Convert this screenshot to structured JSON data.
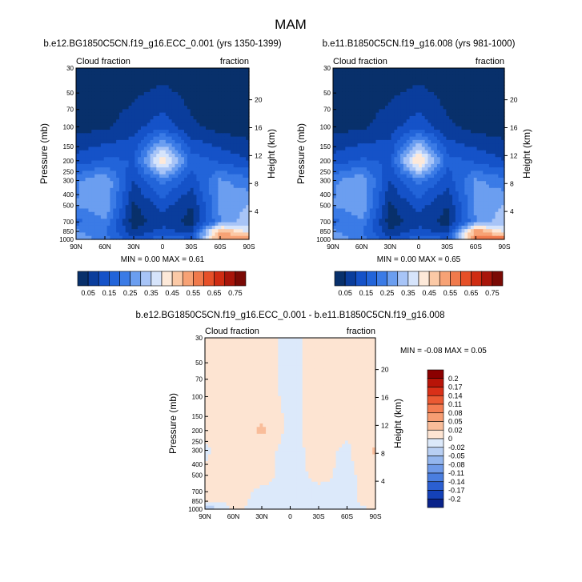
{
  "page_title": "MAM",
  "chart_data": [
    {
      "type": "heatmap",
      "title": "b.e12.BG1850C5CN.f19_g16.ECC_0.001 (yrs 1350-1399)",
      "left_label": "Cloud fraction",
      "right_label": "fraction",
      "ylabel": "Pressure (mb)",
      "ylabel_right": "Height (km)",
      "x_ticks": [
        "90N",
        "60N",
        "30N",
        "0",
        "30S",
        "60S",
        "90S"
      ],
      "y_ticks": [
        "30",
        "50",
        "70",
        "100",
        "150",
        "200",
        "250",
        "300",
        "400",
        "500",
        "700",
        "850",
        "1000"
      ],
      "height_ticks": [
        "20",
        "16",
        "12",
        "8",
        "4"
      ],
      "stats": {
        "min_label": "MIN =",
        "min": "0.00",
        "max_label": "MAX =",
        "max": "0.61"
      },
      "colorbar": {
        "labels": [
          "0.05",
          "0.15",
          "0.25",
          "0.35",
          "0.45",
          "0.55",
          "0.65",
          "0.75"
        ],
        "colors": [
          "#08306b",
          "#0a3d9c",
          "#1552c8",
          "#2264d9",
          "#3b7be6",
          "#6b9ef0",
          "#a7c4f7",
          "#d6e4fb",
          "#fde9d9",
          "#fbc9a6",
          "#f7a275",
          "#f07a4c",
          "#e65028",
          "#cf2c12",
          "#a8150a",
          "#7a0a05"
        ]
      },
      "colormap": "cloud",
      "field": {
        "x": [
          -90,
          -60,
          -30,
          0,
          30,
          60,
          90
        ],
        "p": [
          30,
          100,
          200,
          300,
          500,
          700,
          850,
          1000
        ],
        "values": [
          [
            0.0,
            0.0,
            0.01,
            0.02,
            0.01,
            0.0,
            0.0
          ],
          [
            0.03,
            0.04,
            0.08,
            0.13,
            0.06,
            0.03,
            0.02
          ],
          [
            0.12,
            0.16,
            0.15,
            0.46,
            0.18,
            0.14,
            0.1
          ],
          [
            0.24,
            0.3,
            0.1,
            0.22,
            0.12,
            0.26,
            0.22
          ],
          [
            0.25,
            0.3,
            0.04,
            0.12,
            0.05,
            0.26,
            0.3
          ],
          [
            0.18,
            0.24,
            0.02,
            0.08,
            0.03,
            0.25,
            0.34
          ],
          [
            0.26,
            0.2,
            0.06,
            0.12,
            0.08,
            0.52,
            0.38
          ],
          [
            0.3,
            0.22,
            0.12,
            0.18,
            0.16,
            0.55,
            0.58
          ]
        ]
      }
    },
    {
      "type": "heatmap",
      "title": "b.e11.B1850C5CN.f19_g16.008 (yrs 981-1000)",
      "left_label": "Cloud fraction",
      "right_label": "fraction",
      "ylabel": "Pressure (mb)",
      "ylabel_right": "Height (km)",
      "x_ticks": [
        "90N",
        "60N",
        "30N",
        "0",
        "30S",
        "60S",
        "90S"
      ],
      "y_ticks": [
        "30",
        "50",
        "70",
        "100",
        "150",
        "200",
        "250",
        "300",
        "400",
        "500",
        "700",
        "850",
        "1000"
      ],
      "height_ticks": [
        "20",
        "16",
        "12",
        "8",
        "4"
      ],
      "stats": {
        "min_label": "MIN =",
        "min": "0.00",
        "max_label": "MAX =",
        "max": "0.65"
      },
      "colorbar": {
        "labels": [
          "0.05",
          "0.15",
          "0.25",
          "0.35",
          "0.45",
          "0.55",
          "0.65",
          "0.75"
        ],
        "colors": [
          "#08306b",
          "#0a3d9c",
          "#1552c8",
          "#2264d9",
          "#3b7be6",
          "#6b9ef0",
          "#a7c4f7",
          "#d6e4fb",
          "#fde9d9",
          "#fbc9a6",
          "#f7a275",
          "#f07a4c",
          "#e65028",
          "#cf2c12",
          "#a8150a",
          "#7a0a05"
        ]
      },
      "colormap": "cloud",
      "field": {
        "x": [
          -90,
          -60,
          -30,
          0,
          30,
          60,
          90
        ],
        "p": [
          30,
          100,
          200,
          300,
          500,
          700,
          850,
          1000
        ],
        "values": [
          [
            0.0,
            0.0,
            0.01,
            0.02,
            0.01,
            0.0,
            0.0
          ],
          [
            0.03,
            0.04,
            0.08,
            0.13,
            0.06,
            0.03,
            0.02
          ],
          [
            0.12,
            0.16,
            0.14,
            0.48,
            0.17,
            0.14,
            0.1
          ],
          [
            0.24,
            0.29,
            0.1,
            0.22,
            0.12,
            0.26,
            0.22
          ],
          [
            0.25,
            0.3,
            0.04,
            0.12,
            0.05,
            0.26,
            0.3
          ],
          [
            0.18,
            0.24,
            0.02,
            0.08,
            0.03,
            0.25,
            0.34
          ],
          [
            0.26,
            0.2,
            0.06,
            0.12,
            0.08,
            0.55,
            0.38
          ],
          [
            0.3,
            0.22,
            0.12,
            0.18,
            0.16,
            0.56,
            0.62
          ]
        ]
      }
    },
    {
      "type": "heatmap",
      "title": "b.e12.BG1850C5CN.f19_g16.ECC_0.001 - b.e11.B1850C5CN.f19_g16.008",
      "left_label": "Cloud fraction",
      "right_label": "fraction",
      "ylabel": "Pressure (mb)",
      "ylabel_right": "Height (km)",
      "x_ticks": [
        "90N",
        "60N",
        "30N",
        "0",
        "30S",
        "60S",
        "90S"
      ],
      "y_ticks": [
        "30",
        "50",
        "70",
        "100",
        "150",
        "200",
        "250",
        "300",
        "400",
        "500",
        "700",
        "850",
        "1000"
      ],
      "height_ticks": [
        "20",
        "16",
        "12",
        "8",
        "4"
      ],
      "stats": {
        "min_label": "MIN =",
        "min": "-0.08",
        "max_label": "MAX =",
        "max": "0.05"
      },
      "colorbar": {
        "labels": [
          "0.2",
          "0.17",
          "0.14",
          "0.11",
          "0.08",
          "0.05",
          "0.02",
          "0",
          "-0.02",
          "-0.05",
          "-0.08",
          "-0.11",
          "-0.14",
          "-0.17",
          "-0.2"
        ],
        "colors": [
          "#8b0000",
          "#b81408",
          "#d93018",
          "#eb5a33",
          "#f47d52",
          "#f79d73",
          "#f9bd9a",
          "#fde4d2",
          "#dce9fa",
          "#b8cff3",
          "#94b6ee",
          "#6f9ae8",
          "#4a7edf",
          "#2b5fd2",
          "#1441b8",
          "#0a238a"
        ]
      },
      "colormap": "diff",
      "field": {
        "x": [
          -90,
          -60,
          -30,
          0,
          30,
          60,
          90
        ],
        "p": [
          30,
          100,
          200,
          300,
          500,
          700,
          850,
          1000
        ],
        "values": [
          [
            0.0,
            0.0,
            0.0,
            0.0,
            0.0,
            0.0,
            0.0
          ],
          [
            0.005,
            0.005,
            0.003,
            -0.002,
            0.003,
            0.004,
            0.005
          ],
          [
            0.006,
            0.008,
            0.03,
            -0.01,
            0.015,
            0.005,
            0.01
          ],
          [
            -0.005,
            0.015,
            0.01,
            -0.01,
            0.01,
            -0.005,
            0.03
          ],
          [
            0.005,
            0.012,
            0.008,
            -0.008,
            0.005,
            -0.005,
            0.01
          ],
          [
            0.002,
            0.008,
            -0.004,
            -0.006,
            -0.004,
            -0.003,
            0.005
          ],
          [
            0.004,
            0.006,
            -0.006,
            -0.004,
            -0.005,
            -0.004,
            0.008
          ],
          [
            -0.05,
            0.004,
            -0.006,
            -0.003,
            -0.005,
            -0.01,
            0.004
          ]
        ]
      }
    }
  ]
}
